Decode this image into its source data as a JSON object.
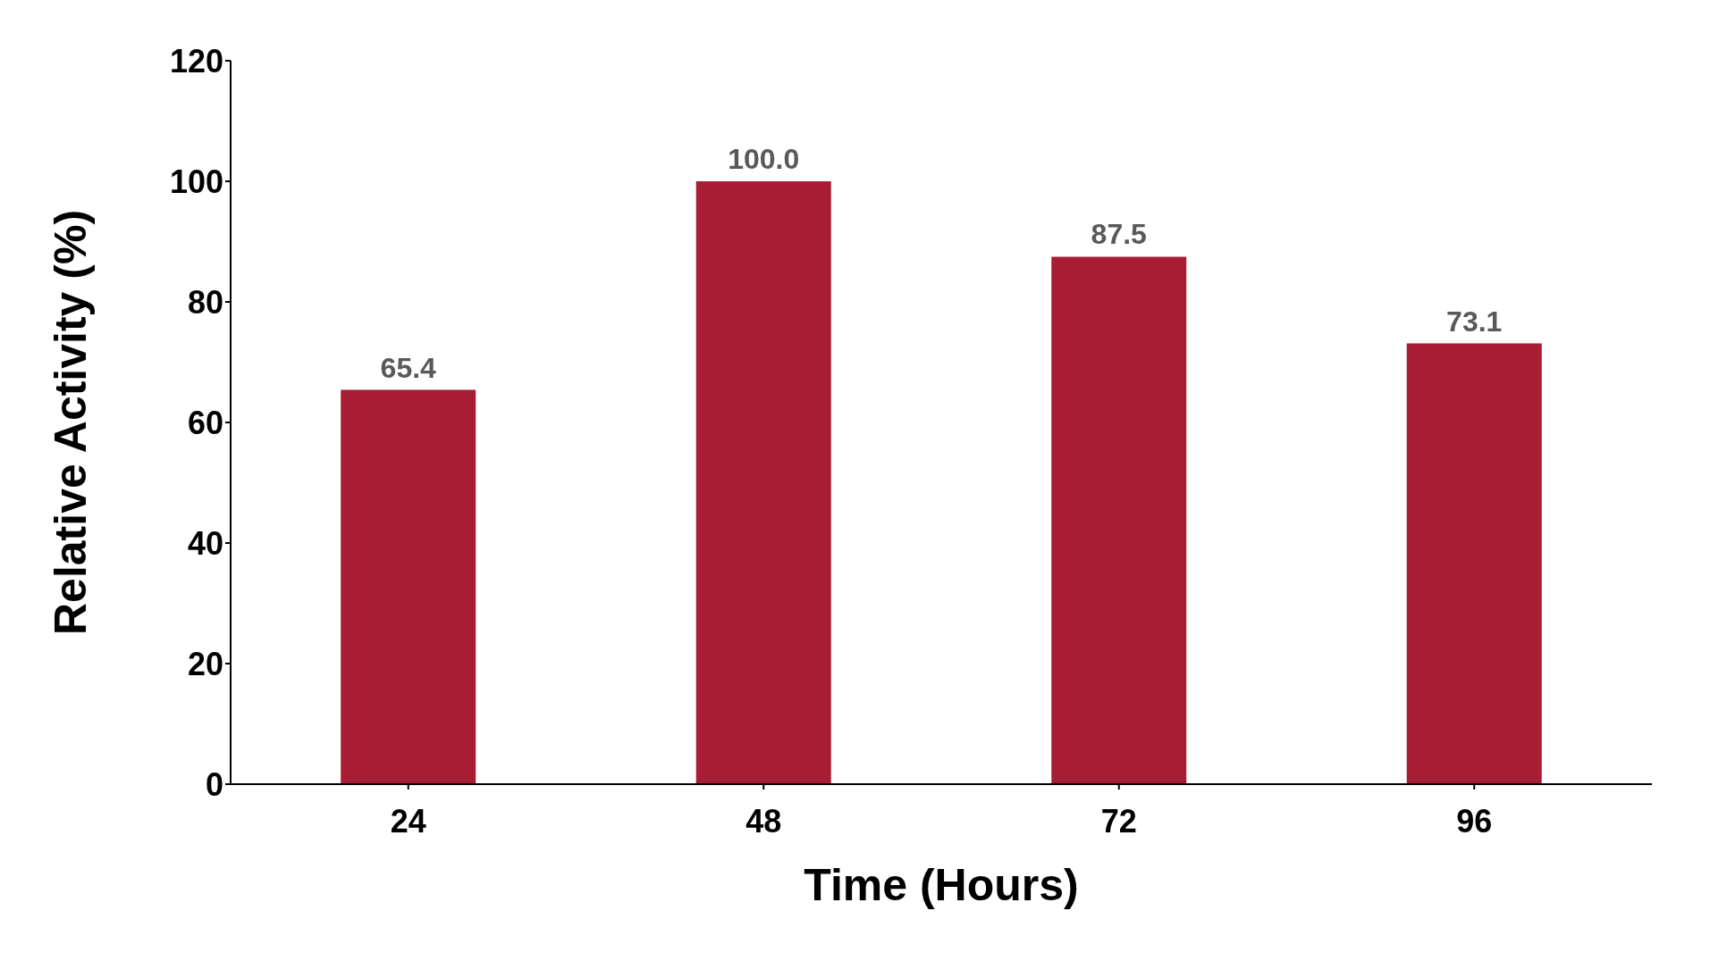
{
  "chart_data": {
    "type": "bar",
    "xlabel": "Time (Hours)",
    "ylabel": "Relative Activity (%)",
    "categories": [
      "24",
      "48",
      "72",
      "96"
    ],
    "values": [
      65.4,
      100.0,
      87.5,
      73.1
    ],
    "value_labels": [
      "65.4",
      "100.0",
      "87.5",
      "73.1"
    ],
    "color": "#a81c34",
    "ylim": [
      0,
      120
    ],
    "yticks": [
      0,
      20,
      40,
      60,
      80,
      100,
      120
    ],
    "grid": false
  }
}
